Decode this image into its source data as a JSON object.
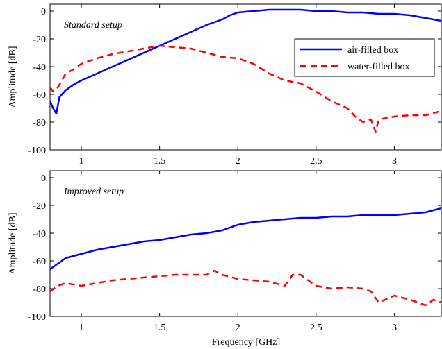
{
  "chart_data": [
    {
      "type": "line",
      "title": "Standard setup",
      "xlabel": "",
      "ylabel": "Amplitude [dB]",
      "xlim": [
        0.8,
        3.3
      ],
      "ylim": [
        -100,
        5
      ],
      "xticks": [
        1,
        1.5,
        2,
        2.5,
        3
      ],
      "xtick_labels": [
        "1",
        "1.5",
        "2",
        "2.5",
        "3"
      ],
      "yticks": [
        0,
        -20,
        -40,
        -60,
        -80,
        -100
      ],
      "ytick_labels": [
        "0",
        "-20",
        "-40",
        "-60",
        "-80",
        "-100"
      ],
      "legend_position": "top-right",
      "series": [
        {
          "name": "air-filled box",
          "color": "#0000ff",
          "style": "solid",
          "x": [
            0.8,
            0.82,
            0.84,
            0.86,
            0.9,
            0.95,
            1.0,
            1.1,
            1.2,
            1.3,
            1.4,
            1.5,
            1.6,
            1.7,
            1.8,
            1.9,
            1.95,
            2.0,
            2.1,
            2.2,
            2.3,
            2.4,
            2.5,
            2.6,
            2.7,
            2.8,
            2.9,
            3.0,
            3.1,
            3.2,
            3.3
          ],
          "y": [
            -65,
            -70,
            -74,
            -62,
            -57,
            -53,
            -50,
            -45,
            -40,
            -35,
            -30,
            -25,
            -20,
            -15,
            -10,
            -6,
            -3,
            -1,
            0,
            1,
            1,
            1,
            0,
            0,
            -1,
            -1,
            -2,
            -2,
            -3,
            -5,
            -7
          ]
        },
        {
          "name": "water-filled box",
          "color": "#ff0000",
          "style": "dashed",
          "x": [
            0.8,
            0.82,
            0.85,
            0.9,
            0.95,
            1.0,
            1.1,
            1.2,
            1.3,
            1.4,
            1.5,
            1.6,
            1.7,
            1.8,
            1.9,
            2.0,
            2.1,
            2.2,
            2.3,
            2.4,
            2.5,
            2.6,
            2.7,
            2.75,
            2.8,
            2.85,
            2.88,
            2.9,
            3.0,
            3.1,
            3.2,
            3.3
          ],
          "y": [
            -55,
            -58,
            -55,
            -45,
            -42,
            -38,
            -34,
            -31,
            -29,
            -27,
            -25,
            -26,
            -27,
            -30,
            -33,
            -34,
            -38,
            -45,
            -50,
            -52,
            -58,
            -65,
            -70,
            -76,
            -80,
            -78,
            -87,
            -78,
            -76,
            -75,
            -75,
            -72
          ]
        }
      ]
    },
    {
      "type": "line",
      "title": "Improved setup",
      "xlabel": "Frequency [GHz]",
      "ylabel": "Amplitude [dB]",
      "xlim": [
        0.8,
        3.3
      ],
      "ylim": [
        -100,
        5
      ],
      "xticks": [
        1,
        1.5,
        2,
        2.5,
        3
      ],
      "xtick_labels": [
        "1",
        "1.5",
        "2",
        "2.5",
        "3"
      ],
      "yticks": [
        0,
        -20,
        -40,
        -60,
        -80,
        -100
      ],
      "ytick_labels": [
        "0",
        "-20",
        "-40",
        "-60",
        "-80",
        "-100"
      ],
      "series": [
        {
          "name": "air-filled box",
          "color": "#0000ff",
          "style": "solid",
          "x": [
            0.8,
            0.85,
            0.9,
            1.0,
            1.1,
            1.2,
            1.3,
            1.4,
            1.5,
            1.6,
            1.7,
            1.8,
            1.9,
            2.0,
            2.1,
            2.2,
            2.3,
            2.4,
            2.5,
            2.6,
            2.7,
            2.8,
            2.9,
            3.0,
            3.1,
            3.2,
            3.3
          ],
          "y": [
            -66,
            -62,
            -58,
            -55,
            -52,
            -50,
            -48,
            -46,
            -45,
            -43,
            -41,
            -40,
            -38,
            -34,
            -32,
            -31,
            -30,
            -29,
            -29,
            -28,
            -28,
            -27,
            -27,
            -27,
            -26,
            -25,
            -22
          ]
        },
        {
          "name": "water-filled box",
          "color": "#ff0000",
          "style": "dashed",
          "x": [
            0.8,
            0.85,
            0.9,
            1.0,
            1.1,
            1.2,
            1.3,
            1.4,
            1.5,
            1.6,
            1.7,
            1.8,
            1.85,
            1.9,
            2.0,
            2.1,
            2.2,
            2.3,
            2.35,
            2.4,
            2.5,
            2.6,
            2.7,
            2.8,
            2.85,
            2.9,
            3.0,
            3.1,
            3.2,
            3.25,
            3.3
          ],
          "y": [
            -82,
            -78,
            -76,
            -78,
            -76,
            -74,
            -73,
            -72,
            -71,
            -70,
            -70,
            -70,
            -67,
            -70,
            -73,
            -74,
            -75,
            -78,
            -70,
            -70,
            -78,
            -80,
            -79,
            -80,
            -82,
            -90,
            -85,
            -88,
            -92,
            -88,
            -90
          ]
        }
      ]
    }
  ]
}
